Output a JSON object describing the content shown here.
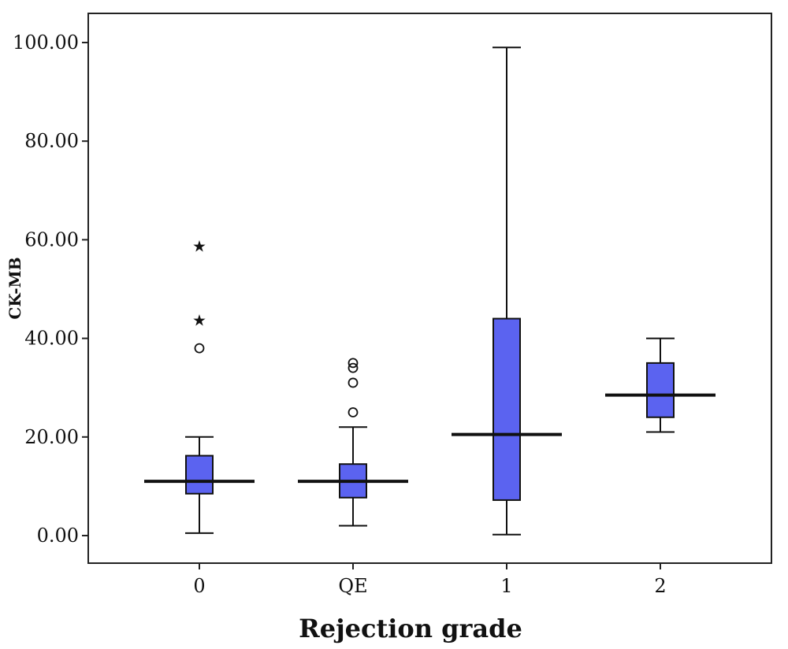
{
  "chart_data": {
    "type": "box",
    "xlabel": "Rejection grade",
    "ylabel": "CK-MB",
    "ylim": [
      -5,
      107
    ],
    "yticks": [
      0,
      20,
      40,
      60,
      80,
      100
    ],
    "ytick_labels": [
      "0.00",
      "20.00",
      "40.00",
      "60.00",
      "80.00",
      "100.00"
    ],
    "categories": [
      "0",
      "QE",
      "1",
      "2"
    ],
    "boxes": [
      {
        "category": "0",
        "min": 0.5,
        "q1": 8.5,
        "median": 11.0,
        "q3": 16.2,
        "max": 20.0,
        "outliers": [
          {
            "value": 38.0,
            "marker": "circle"
          },
          {
            "value": 44.0,
            "marker": "star"
          },
          {
            "value": 59.0,
            "marker": "star"
          }
        ]
      },
      {
        "category": "QE",
        "min": 2.0,
        "q1": 7.7,
        "median": 11.0,
        "q3": 14.5,
        "max": 22.0,
        "outliers": [
          {
            "value": 25.0,
            "marker": "circle"
          },
          {
            "value": 31.0,
            "marker": "circle"
          },
          {
            "value": 34.0,
            "marker": "circle"
          },
          {
            "value": 35.0,
            "marker": "circle"
          }
        ]
      },
      {
        "category": "1",
        "min": 0.2,
        "q1": 7.2,
        "median": 20.5,
        "q3": 44.0,
        "max": 99.0,
        "outliers": []
      },
      {
        "category": "2",
        "min": 21.0,
        "q1": 24.0,
        "median": 28.5,
        "q3": 35.0,
        "max": 40.0,
        "outliers": []
      }
    ],
    "colors": {
      "box_fill": "#5b63f0",
      "stroke": "#111111"
    },
    "grid": false,
    "legend": "none"
  }
}
